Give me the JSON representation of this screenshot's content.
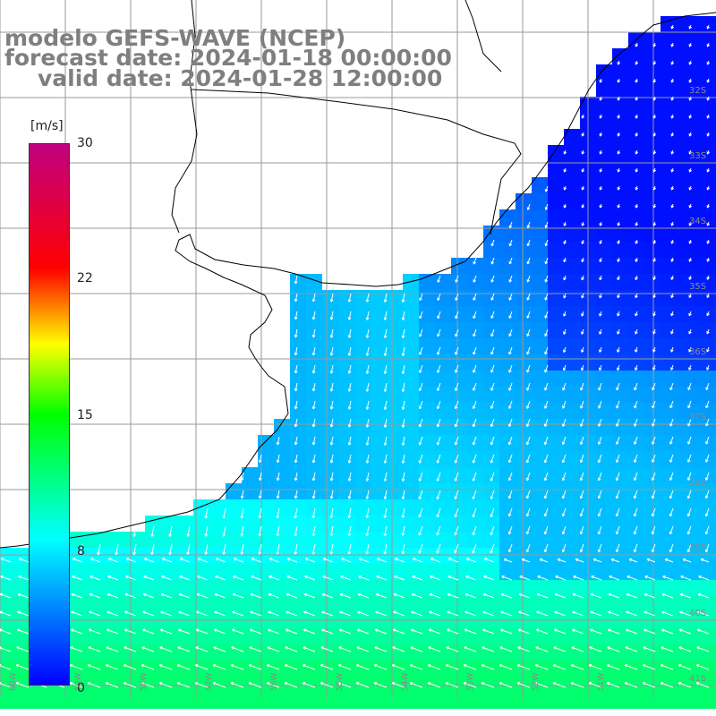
{
  "title": {
    "line1": "modelo GEFS-WAVE (NCEP)",
    "line2": "forecast date: 2024-01-18 00:00:00",
    "line3": "valid date: 2024-01-28 12:00:00"
  },
  "colorbar": {
    "unit": "[m/s]",
    "min": 0,
    "max": 30,
    "ticks": [
      "30",
      "22",
      "15",
      "8",
      "0"
    ],
    "colors": [
      "#0000ff",
      "#00ffff",
      "#00ff00",
      "#ffff00",
      "#ff0000",
      "#c0007f"
    ]
  },
  "lat_labels": [
    "32S",
    "33S",
    "34S",
    "35S",
    "36S",
    "37S",
    "38S",
    "39S",
    "40S",
    "41S"
  ],
  "lon_labels": [
    "60W",
    "59W",
    "58W",
    "57W",
    "56W",
    "55W",
    "54W",
    "53W",
    "52W",
    "51W"
  ],
  "field": {
    "variable": "wind speed",
    "units": "m/s",
    "typical_values": {
      "northeast_offshore": 2,
      "rio_de_la_plata_estuary": 6,
      "southern_open_ocean": 10,
      "southernmost_strip": 12
    }
  }
}
